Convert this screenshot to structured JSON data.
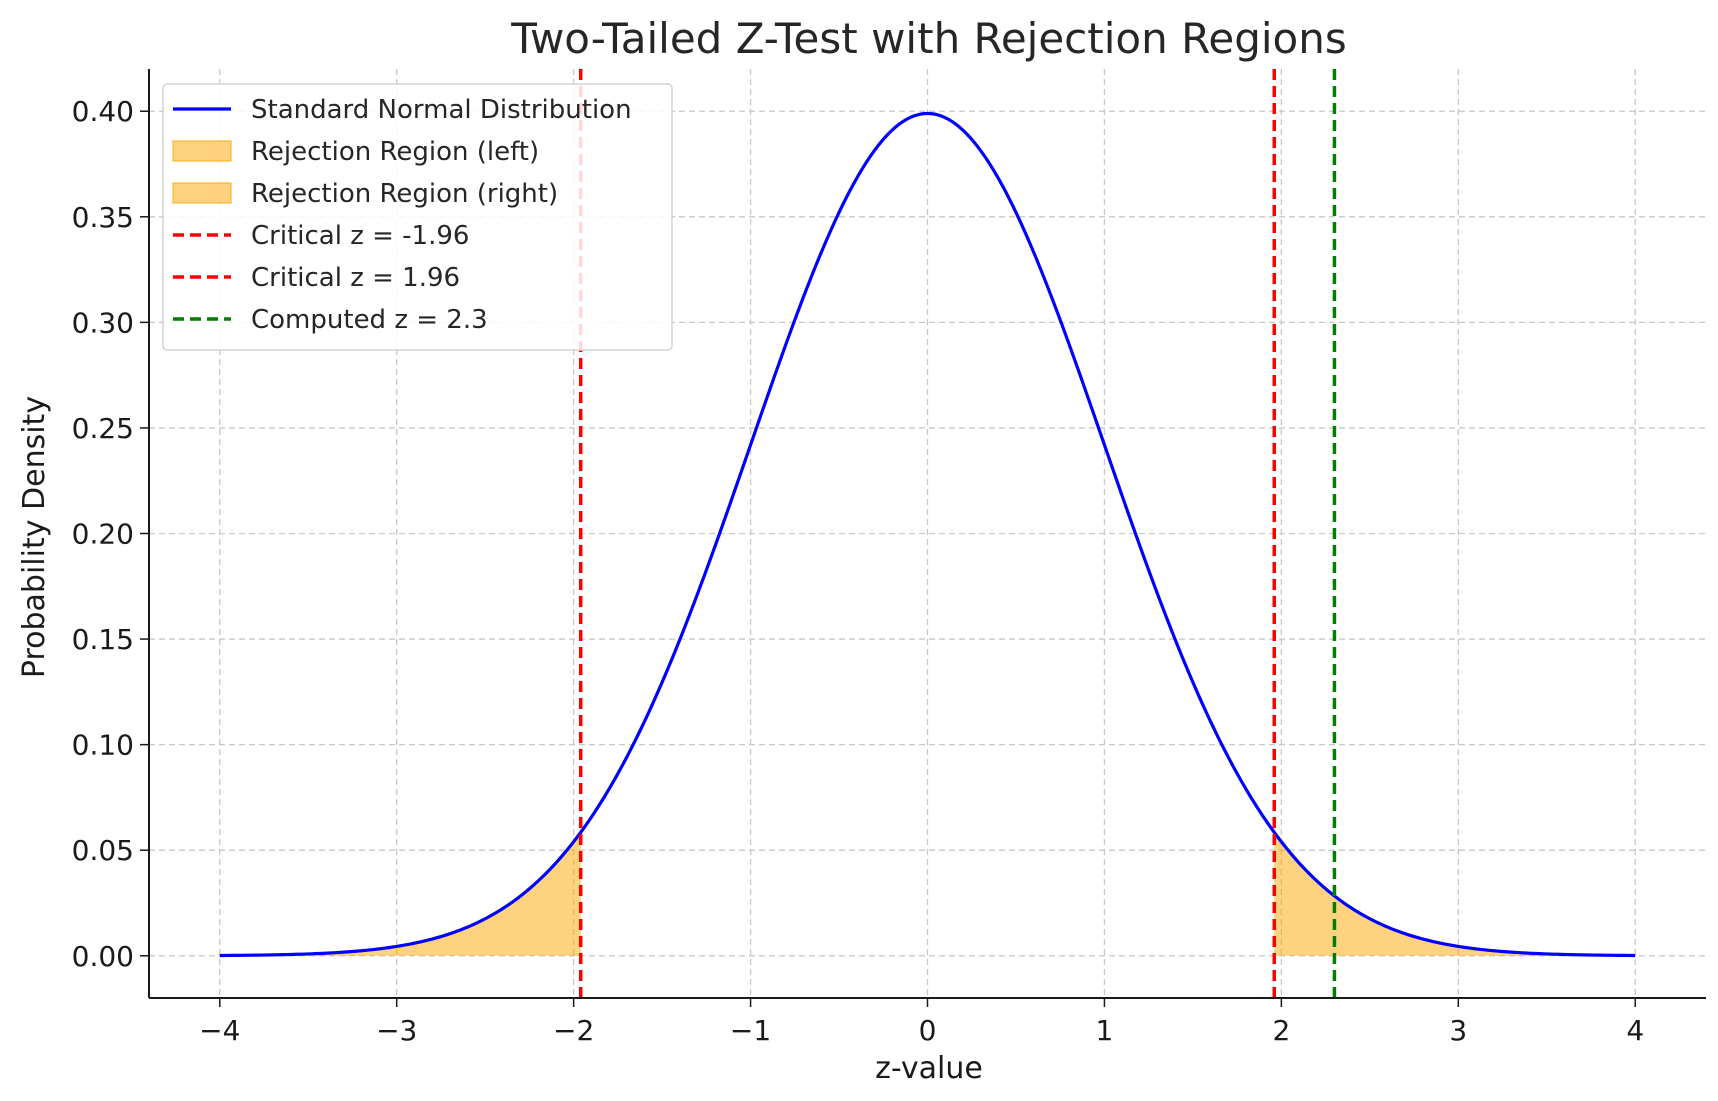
{
  "chart_data": {
    "type": "line",
    "title": "Two-Tailed Z-Test with Rejection Regions",
    "xlabel": "z-value",
    "ylabel": "Probability Density",
    "xlim": [
      -4.4,
      4.4
    ],
    "ylim": [
      -0.02,
      0.42
    ],
    "x_ticks": [
      -4,
      -3,
      -2,
      -1,
      0,
      1,
      2,
      3,
      4
    ],
    "x_tick_labels": [
      "−4",
      "−3",
      "−2",
      "−1",
      "0",
      "1",
      "2",
      "3",
      "4"
    ],
    "y_ticks": [
      0.0,
      0.05,
      0.1,
      0.15,
      0.2,
      0.25,
      0.3,
      0.35,
      0.4
    ],
    "y_tick_labels": [
      "0.00",
      "0.05",
      "0.10",
      "0.15",
      "0.20",
      "0.25",
      "0.30",
      "0.35",
      "0.40"
    ],
    "grid": true,
    "legend_position": "top-left",
    "curve": {
      "name": "Standard Normal Distribution",
      "color": "#0000ff",
      "x": [
        -4.0,
        -3.8,
        -3.6,
        -3.4,
        -3.2,
        -3.0,
        -2.8,
        -2.6,
        -2.4,
        -2.2,
        -2.0,
        -1.96,
        -1.8,
        -1.6,
        -1.4,
        -1.2,
        -1.0,
        -0.8,
        -0.6,
        -0.4,
        -0.2,
        0.0,
        0.2,
        0.4,
        0.6,
        0.8,
        1.0,
        1.2,
        1.4,
        1.6,
        1.8,
        1.96,
        2.0,
        2.2,
        2.4,
        2.6,
        2.8,
        3.0,
        3.2,
        3.4,
        3.6,
        3.8,
        4.0
      ],
      "y": [
        0.0001,
        0.0003,
        0.0006,
        0.0012,
        0.0024,
        0.0044,
        0.0079,
        0.0136,
        0.0224,
        0.0355,
        0.054,
        0.0584,
        0.079,
        0.1109,
        0.1497,
        0.1942,
        0.242,
        0.2897,
        0.3332,
        0.3683,
        0.391,
        0.3989,
        0.391,
        0.3683,
        0.3332,
        0.2897,
        0.242,
        0.1942,
        0.1497,
        0.1109,
        0.079,
        0.0584,
        0.054,
        0.0355,
        0.0224,
        0.0136,
        0.0079,
        0.0044,
        0.0024,
        0.0012,
        0.0006,
        0.0003,
        0.0001
      ]
    },
    "regions": [
      {
        "name": "Rejection Region (left)",
        "from": -4.0,
        "to": -1.96,
        "color": "#ffa500",
        "opacity": 0.5
      },
      {
        "name": "Rejection Region (right)",
        "from": 1.96,
        "to": 4.0,
        "color": "#ffa500",
        "opacity": 0.5
      }
    ],
    "vlines": [
      {
        "name": "Critical z = -1.96",
        "x": -1.96,
        "color": "#ff0000"
      },
      {
        "name": "Critical z = 1.96",
        "x": 1.96,
        "color": "#ff0000"
      },
      {
        "name": "Computed z = 2.3",
        "x": 2.3,
        "color": "#007f00"
      }
    ],
    "legend": [
      {
        "label": "Standard Normal Distribution",
        "kind": "line",
        "color": "#0000ff"
      },
      {
        "label": "Rejection Region (left)",
        "kind": "patch",
        "color": "#ffa500"
      },
      {
        "label": "Rejection Region (right)",
        "kind": "patch",
        "color": "#ffa500"
      },
      {
        "label": "Critical z = -1.96",
        "kind": "dashed",
        "color": "#ff0000"
      },
      {
        "label": "Critical z = 1.96",
        "kind": "dashed",
        "color": "#ff0000"
      },
      {
        "label": "Computed z = 2.3",
        "kind": "dashed",
        "color": "#007f00"
      }
    ]
  }
}
